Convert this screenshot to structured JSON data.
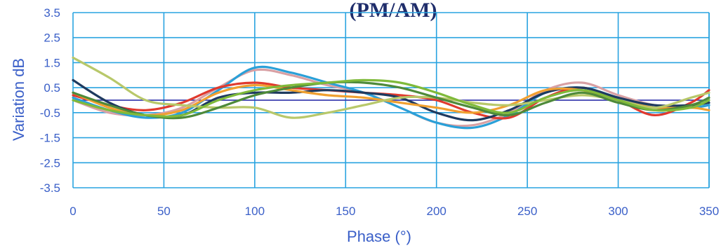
{
  "chart_data": {
    "type": "line",
    "title": "(PM/AM)",
    "xlabel": "Phase (°)",
    "ylabel": "Variation dB",
    "xlim": [
      0,
      350
    ],
    "ylim": [
      -3.5,
      3.5
    ],
    "x_ticks": [
      0,
      50,
      100,
      150,
      200,
      250,
      300,
      350
    ],
    "y_ticks": [
      3.5,
      2.5,
      1.5,
      0.5,
      -0.5,
      -1.5,
      -2.5,
      -3.5
    ],
    "grid": true,
    "colors": {
      "grid": "#29a3e0",
      "zero_line": "#3b3fb0",
      "axis_text": "#3a5fc8",
      "title_text": "#1f2d6b"
    },
    "series": [
      {
        "color": "#d8a0a4",
        "x": [
          0,
          20,
          40,
          60,
          80,
          100,
          120,
          140,
          160,
          180,
          200,
          220,
          240,
          260,
          280,
          300,
          320,
          340,
          350
        ],
        "y": [
          0.0,
          -0.5,
          -0.6,
          -0.3,
          0.5,
          1.2,
          1.0,
          0.6,
          0.3,
          -0.3,
          -0.9,
          -1.0,
          -0.5,
          0.4,
          0.7,
          0.2,
          -0.2,
          -0.3,
          -0.2
        ]
      },
      {
        "color": "#2aa0d8",
        "x": [
          0,
          20,
          40,
          60,
          80,
          100,
          120,
          140,
          160,
          180,
          200,
          220,
          240,
          260,
          280,
          300,
          320,
          340,
          350
        ],
        "y": [
          0.1,
          -0.4,
          -0.7,
          -0.5,
          0.4,
          1.3,
          1.1,
          0.7,
          0.3,
          -0.3,
          -0.9,
          -1.1,
          -0.6,
          0.3,
          0.5,
          0.1,
          -0.3,
          -0.3,
          -0.2
        ]
      },
      {
        "color": "#e03a2e",
        "x": [
          0,
          20,
          40,
          60,
          80,
          100,
          120,
          140,
          160,
          180,
          200,
          220,
          240,
          260,
          280,
          300,
          320,
          340,
          350
        ],
        "y": [
          0.2,
          -0.2,
          -0.4,
          -0.1,
          0.5,
          0.7,
          0.5,
          0.4,
          0.3,
          0.2,
          0.0,
          -0.5,
          -0.7,
          0.1,
          0.5,
          0.0,
          -0.6,
          -0.1,
          0.4
        ]
      },
      {
        "color": "#1e3a5f",
        "x": [
          0,
          20,
          40,
          60,
          80,
          100,
          120,
          140,
          160,
          180,
          200,
          220,
          240,
          260,
          280,
          300,
          320,
          340,
          350
        ],
        "y": [
          0.8,
          -0.1,
          -0.6,
          -0.6,
          0.1,
          0.3,
          0.3,
          0.4,
          0.3,
          0.1,
          -0.5,
          -0.8,
          -0.4,
          0.3,
          0.5,
          0.1,
          -0.2,
          -0.2,
          -0.1
        ]
      },
      {
        "color": "#f0a030",
        "x": [
          0,
          20,
          40,
          60,
          80,
          100,
          120,
          140,
          160,
          180,
          200,
          220,
          240,
          260,
          280,
          300,
          320,
          340,
          350
        ],
        "y": [
          0.3,
          -0.3,
          -0.6,
          -0.4,
          0.3,
          0.6,
          0.4,
          0.2,
          0.1,
          -0.1,
          -0.3,
          -0.5,
          -0.2,
          0.4,
          0.4,
          0.0,
          -0.3,
          -0.3,
          -0.4
        ]
      },
      {
        "color": "#b8c86a",
        "x": [
          0,
          20,
          40,
          60,
          80,
          100,
          120,
          140,
          160,
          180,
          200,
          220,
          240,
          260,
          280,
          300,
          320,
          340,
          350
        ],
        "y": [
          1.7,
          0.9,
          0.0,
          -0.2,
          -0.3,
          -0.3,
          -0.7,
          -0.5,
          -0.2,
          0.1,
          0.1,
          -0.1,
          -0.2,
          0.0,
          0.2,
          0.0,
          -0.3,
          0.1,
          0.3
        ]
      },
      {
        "color": "#4e8a3a",
        "x": [
          0,
          20,
          40,
          60,
          80,
          100,
          120,
          140,
          160,
          180,
          200,
          220,
          240,
          260,
          280,
          300,
          320,
          340,
          350
        ],
        "y": [
          0.3,
          -0.2,
          -0.6,
          -0.7,
          -0.3,
          0.2,
          0.5,
          0.7,
          0.7,
          0.5,
          0.1,
          -0.3,
          -0.6,
          -0.1,
          0.3,
          -0.1,
          -0.4,
          -0.2,
          0.1
        ]
      },
      {
        "color": "#7fba3a",
        "x": [
          0,
          20,
          40,
          60,
          80,
          100,
          120,
          140,
          160,
          180,
          200,
          220,
          240,
          260,
          280,
          300,
          320,
          340,
          350
        ],
        "y": [
          0.0,
          -0.4,
          -0.6,
          -0.6,
          0.0,
          0.4,
          0.6,
          0.7,
          0.8,
          0.7,
          0.3,
          -0.2,
          -0.5,
          0.1,
          0.4,
          0.0,
          -0.4,
          -0.3,
          0.0
        ]
      }
    ]
  }
}
